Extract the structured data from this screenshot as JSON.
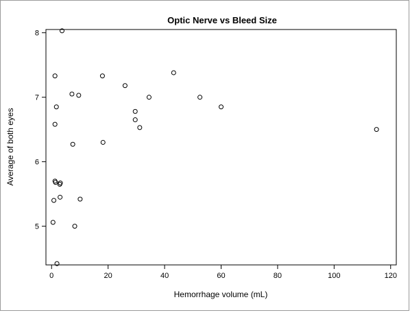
{
  "chart_data": {
    "type": "scatter",
    "title": "Optic Nerve vs Bleed Size",
    "xlabel": "Hemorrhage volume (mL)",
    "ylabel": "Average of both eyes",
    "xlim": [
      -2,
      122
    ],
    "ylim": [
      4.4,
      8.05
    ],
    "xticks": [
      0,
      20,
      40,
      60,
      80,
      100,
      120
    ],
    "yticks": [
      5,
      6,
      7,
      8
    ],
    "grid": false,
    "marker": "open-circle",
    "series": [
      {
        "points": [
          {
            "x": 3.7,
            "y": 8.03
          },
          {
            "x": 1.2,
            "y": 7.33
          },
          {
            "x": 18.0,
            "y": 7.33
          },
          {
            "x": 43.2,
            "y": 7.38
          },
          {
            "x": 26.0,
            "y": 7.18
          },
          {
            "x": 7.2,
            "y": 7.05
          },
          {
            "x": 9.6,
            "y": 7.03
          },
          {
            "x": 34.5,
            "y": 7.0
          },
          {
            "x": 52.5,
            "y": 7.0
          },
          {
            "x": 1.7,
            "y": 6.85
          },
          {
            "x": 60.0,
            "y": 6.85
          },
          {
            "x": 29.6,
            "y": 6.78
          },
          {
            "x": 29.6,
            "y": 6.65
          },
          {
            "x": 1.2,
            "y": 6.58
          },
          {
            "x": 31.2,
            "y": 6.53
          },
          {
            "x": 115.0,
            "y": 6.5
          },
          {
            "x": 7.5,
            "y": 6.27
          },
          {
            "x": 18.2,
            "y": 6.3
          },
          {
            "x": 1.2,
            "y": 5.7
          },
          {
            "x": 1.4,
            "y": 5.68
          },
          {
            "x": 2.9,
            "y": 5.65
          },
          {
            "x": 3.1,
            "y": 5.67
          },
          {
            "x": 3.0,
            "y": 5.45
          },
          {
            "x": 0.8,
            "y": 5.4
          },
          {
            "x": 10.1,
            "y": 5.42
          },
          {
            "x": 0.5,
            "y": 5.06
          },
          {
            "x": 8.2,
            "y": 5.0
          },
          {
            "x": 1.9,
            "y": 4.42
          }
        ]
      }
    ]
  }
}
